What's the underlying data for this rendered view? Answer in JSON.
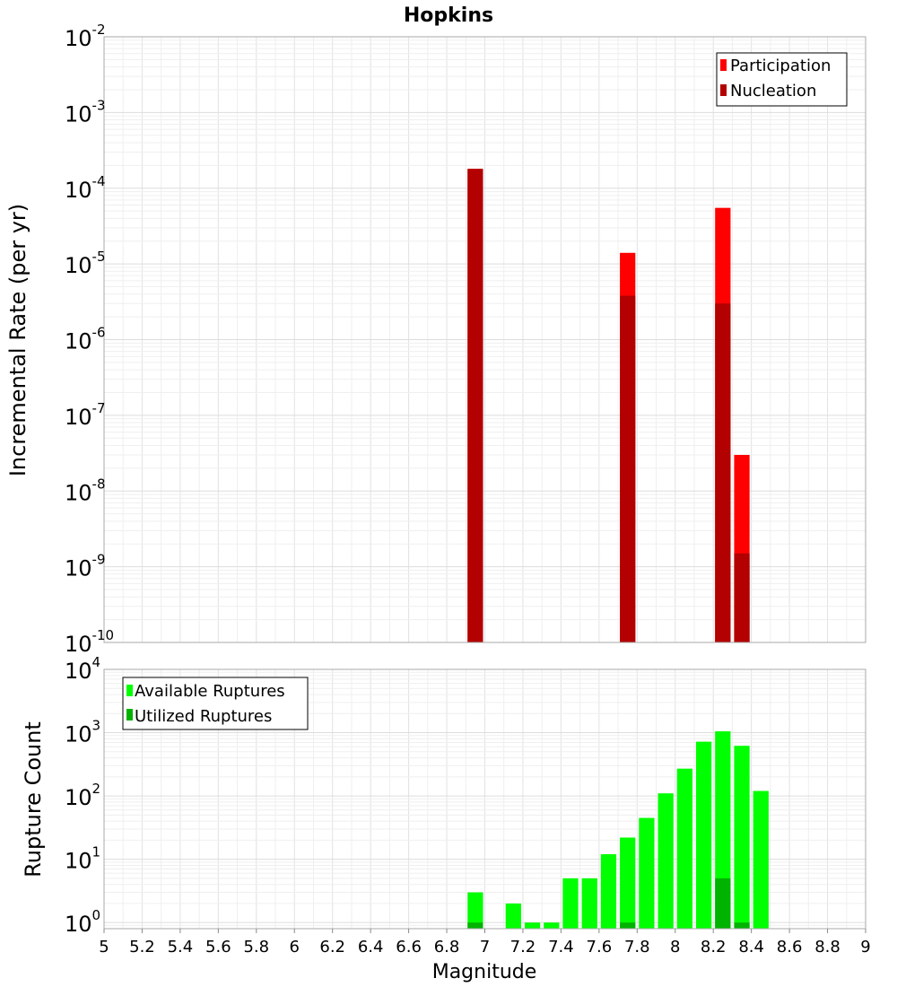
{
  "chart_data": [
    {
      "type": "bar",
      "title": "Hopkins",
      "xlabel": "",
      "ylabel": "Incremental Rate (per yr)",
      "yscale": "log",
      "ylim": [
        1e-10,
        0.01
      ],
      "xlim": [
        5,
        9
      ],
      "bar_width": 0.1,
      "grid": true,
      "legend_position": "top-right",
      "series": [
        {
          "name": "Participation",
          "color": "#ff0000",
          "x": [
            6.95,
            7.75,
            8.25,
            8.35
          ],
          "values": [
            0.00018,
            1.4e-05,
            5.5e-05,
            3e-08
          ]
        },
        {
          "name": "Nucleation",
          "color": "#b30000",
          "x": [
            6.95,
            7.75,
            8.25,
            8.35
          ],
          "values": [
            0.00018,
            3.8e-06,
            3e-06,
            1.5e-09
          ]
        }
      ],
      "y_ticks": [
        {
          "base": "10",
          "exp": "-10"
        },
        {
          "base": "10",
          "exp": "-9"
        },
        {
          "base": "10",
          "exp": "-8"
        },
        {
          "base": "10",
          "exp": "-7"
        },
        {
          "base": "10",
          "exp": "-6"
        },
        {
          "base": "10",
          "exp": "-5"
        },
        {
          "base": "10",
          "exp": "-4"
        },
        {
          "base": "10",
          "exp": "-3"
        },
        {
          "base": "10",
          "exp": "-2"
        }
      ]
    },
    {
      "type": "bar",
      "title": "",
      "xlabel": "Magnitude",
      "ylabel": "Rupture Count",
      "yscale": "log",
      "ylim": [
        0.8,
        10000
      ],
      "xlim": [
        5,
        9
      ],
      "bar_width": 0.1,
      "grid": true,
      "legend_position": "top-left",
      "series": [
        {
          "name": "Available Ruptures",
          "color": "#00ff00",
          "x": [
            6.95,
            7.15,
            7.25,
            7.35,
            7.45,
            7.55,
            7.65,
            7.75,
            7.85,
            7.95,
            8.05,
            8.15,
            8.25,
            8.35,
            8.45
          ],
          "values": [
            3,
            2,
            1,
            1,
            5,
            5,
            12,
            22,
            45,
            110,
            270,
            720,
            1050,
            620,
            120
          ]
        },
        {
          "name": "Utilized Ruptures",
          "color": "#00b300",
          "x": [
            6.95,
            7.75,
            8.25,
            8.35
          ],
          "values": [
            1,
            1,
            5,
            1
          ]
        }
      ],
      "x_ticks": [
        "5",
        "5.2",
        "5.4",
        "5.6",
        "5.8",
        "6",
        "6.2",
        "6.4",
        "6.6",
        "6.8",
        "7",
        "7.2",
        "7.4",
        "7.6",
        "7.8",
        "8",
        "8.2",
        "8.4",
        "8.6",
        "8.8",
        "9"
      ],
      "y_ticks": [
        {
          "base": "10",
          "exp": "0"
        },
        {
          "base": "10",
          "exp": "1"
        },
        {
          "base": "10",
          "exp": "2"
        },
        {
          "base": "10",
          "exp": "3"
        },
        {
          "base": "10",
          "exp": "4"
        }
      ]
    }
  ]
}
